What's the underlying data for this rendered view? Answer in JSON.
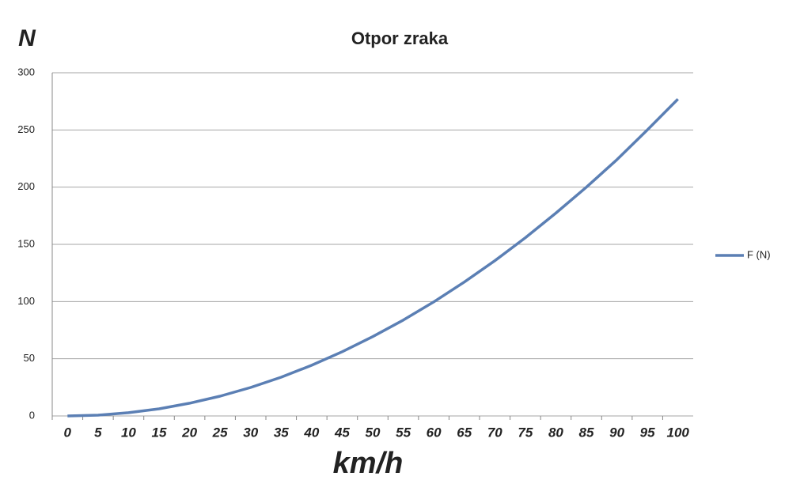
{
  "chart_data": {
    "type": "line",
    "title": "Otpor zraka",
    "y_label": "N",
    "x_label": "km/h",
    "categories": [
      "0",
      "5",
      "10",
      "15",
      "20",
      "25",
      "30",
      "35",
      "40",
      "45",
      "50",
      "55",
      "60",
      "65",
      "70",
      "75",
      "80",
      "85",
      "90",
      "95",
      "100"
    ],
    "series": [
      {
        "name": "F (N)",
        "color": "#5b7fb4",
        "values": [
          0,
          0.7,
          2.8,
          6.2,
          11.1,
          17.3,
          24.9,
          33.9,
          44.3,
          56.1,
          69.3,
          83.8,
          99.7,
          117,
          135.7,
          155.8,
          177.3,
          200,
          224,
          250,
          277
        ]
      }
    ],
    "ylim": [
      0,
      300
    ],
    "yticks": [
      0,
      50,
      100,
      150,
      200,
      250,
      300
    ],
    "grid": true,
    "legend": "right"
  }
}
